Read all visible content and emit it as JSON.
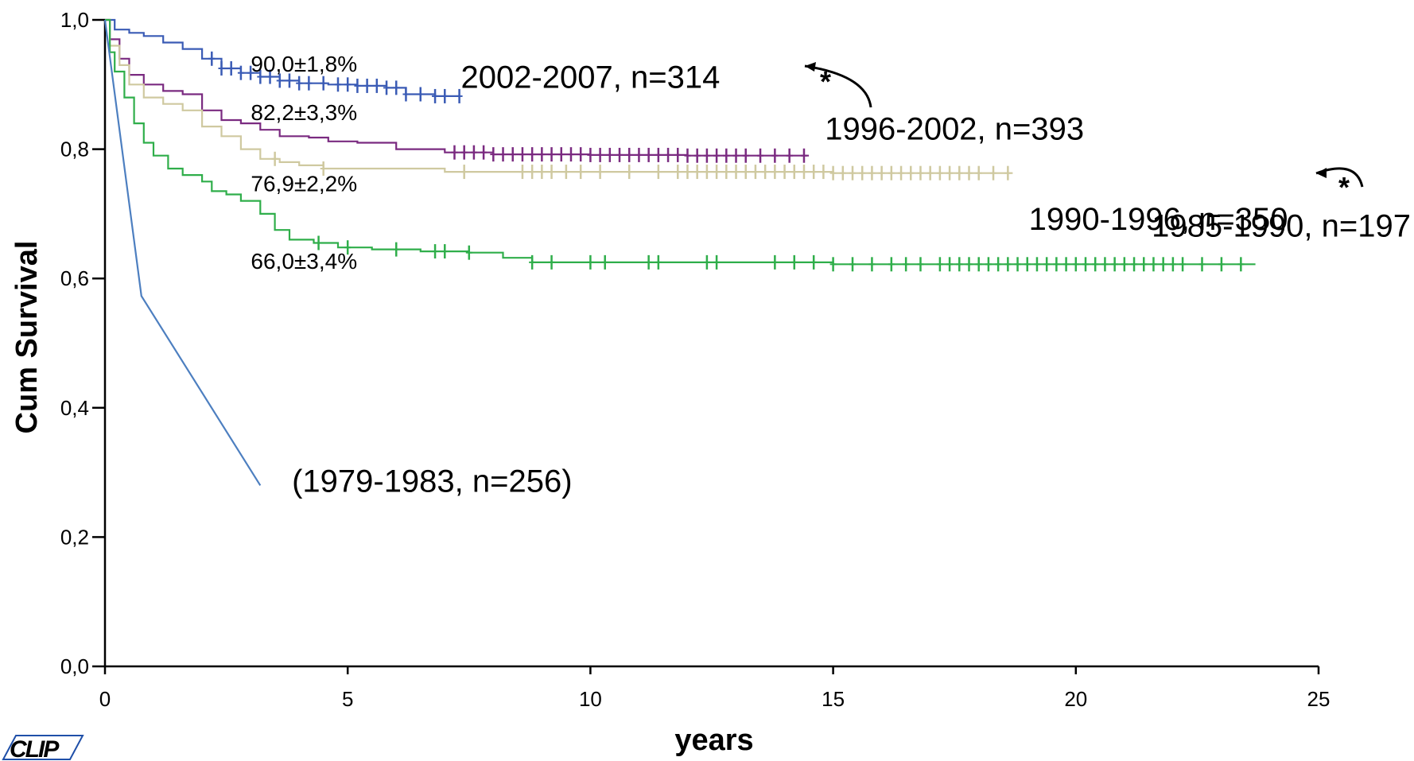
{
  "chart_data": {
    "type": "line",
    "title": "",
    "xlabel": "years",
    "ylabel": "Cum Survival",
    "xlim": [
      0,
      25
    ],
    "ylim": [
      0,
      1
    ],
    "x_ticks": [
      "0",
      "5",
      "10",
      "15",
      "20",
      "25"
    ],
    "y_ticks": [
      "0,0",
      "0,2",
      "0,4",
      "0,6",
      "0,8",
      "1,0"
    ],
    "grid": false,
    "series": [
      {
        "name": "2002-2007, n=314",
        "color": "#3a5bb5",
        "points": [
          [
            0,
            1.0
          ],
          [
            0.2,
            0.985
          ],
          [
            0.5,
            0.98
          ],
          [
            0.8,
            0.975
          ],
          [
            1.2,
            0.965
          ],
          [
            1.6,
            0.955
          ],
          [
            2.0,
            0.94
          ],
          [
            2.4,
            0.925
          ],
          [
            2.8,
            0.918
          ],
          [
            3.2,
            0.912
          ],
          [
            3.6,
            0.906
          ],
          [
            4.0,
            0.902
          ],
          [
            4.6,
            0.9
          ],
          [
            5.2,
            0.898
          ],
          [
            5.8,
            0.895
          ],
          [
            6.2,
            0.885
          ],
          [
            6.8,
            0.882
          ],
          [
            7.3,
            0.882
          ]
        ],
        "censor_x": [
          2.2,
          2.4,
          2.6,
          2.8,
          3.0,
          3.2,
          3.4,
          3.6,
          3.8,
          4.0,
          4.2,
          4.5,
          4.8,
          5.0,
          5.2,
          5.4,
          5.6,
          5.8,
          6.0,
          6.2,
          6.5,
          6.8,
          7.0,
          7.3
        ]
      },
      {
        "name": "1996-2002, n=393",
        "color": "#7a2a80",
        "points": [
          [
            0,
            1.0
          ],
          [
            0.1,
            0.97
          ],
          [
            0.3,
            0.94
          ],
          [
            0.5,
            0.915
          ],
          [
            0.8,
            0.9
          ],
          [
            1.2,
            0.89
          ],
          [
            1.6,
            0.885
          ],
          [
            2.0,
            0.86
          ],
          [
            2.4,
            0.845
          ],
          [
            2.8,
            0.84
          ],
          [
            3.2,
            0.83
          ],
          [
            3.6,
            0.82
          ],
          [
            4.2,
            0.818
          ],
          [
            4.6,
            0.812
          ],
          [
            5.2,
            0.81
          ],
          [
            6.0,
            0.8
          ],
          [
            7.0,
            0.795
          ],
          [
            8.0,
            0.792
          ],
          [
            10.0,
            0.791
          ],
          [
            12.0,
            0.79
          ],
          [
            14.5,
            0.79
          ]
        ],
        "censor_x": [
          7.2,
          7.4,
          7.6,
          7.8,
          8.0,
          8.2,
          8.4,
          8.6,
          8.8,
          9.0,
          9.2,
          9.4,
          9.6,
          9.8,
          10.0,
          10.2,
          10.4,
          10.6,
          10.8,
          11.0,
          11.2,
          11.4,
          11.6,
          11.8,
          12.0,
          12.2,
          12.4,
          12.6,
          12.8,
          13.0,
          13.2,
          13.5,
          13.8,
          14.1,
          14.4
        ]
      },
      {
        "name": "1990-1996, n=350",
        "color": "#cfc9a0",
        "points": [
          [
            0,
            1.0
          ],
          [
            0.1,
            0.96
          ],
          [
            0.3,
            0.93
          ],
          [
            0.5,
            0.9
          ],
          [
            0.8,
            0.88
          ],
          [
            1.2,
            0.87
          ],
          [
            1.6,
            0.86
          ],
          [
            2.0,
            0.835
          ],
          [
            2.4,
            0.82
          ],
          [
            2.8,
            0.8
          ],
          [
            3.2,
            0.785
          ],
          [
            3.6,
            0.78
          ],
          [
            4.0,
            0.775
          ],
          [
            4.5,
            0.77
          ],
          [
            5.5,
            0.77
          ],
          [
            7.0,
            0.765
          ],
          [
            9.0,
            0.765
          ],
          [
            12.0,
            0.765
          ],
          [
            15.0,
            0.763
          ],
          [
            18.7,
            0.763
          ]
        ],
        "censor_x": [
          3.5,
          4.5,
          7.4,
          8.6,
          8.8,
          9.0,
          9.2,
          9.5,
          9.8,
          10.2,
          10.8,
          11.4,
          11.8,
          12.0,
          12.2,
          12.4,
          12.6,
          12.8,
          13.0,
          13.2,
          13.4,
          13.6,
          13.8,
          14.0,
          14.2,
          14.4,
          14.6,
          14.8,
          15.0,
          15.2,
          15.4,
          15.6,
          15.8,
          16.0,
          16.2,
          16.4,
          16.6,
          16.8,
          17.0,
          17.2,
          17.4,
          17.6,
          17.8,
          18.0,
          18.3,
          18.6
        ]
      },
      {
        "name": "1985-1990, n=197",
        "color": "#2fae4a",
        "points": [
          [
            0,
            1.0
          ],
          [
            0.1,
            0.95
          ],
          [
            0.2,
            0.92
          ],
          [
            0.4,
            0.88
          ],
          [
            0.6,
            0.84
          ],
          [
            0.8,
            0.81
          ],
          [
            1.0,
            0.79
          ],
          [
            1.3,
            0.77
          ],
          [
            1.6,
            0.76
          ],
          [
            2.0,
            0.75
          ],
          [
            2.2,
            0.735
          ],
          [
            2.5,
            0.73
          ],
          [
            2.8,
            0.72
          ],
          [
            3.2,
            0.7
          ],
          [
            3.5,
            0.675
          ],
          [
            3.8,
            0.66
          ],
          [
            4.3,
            0.655
          ],
          [
            4.8,
            0.648
          ],
          [
            5.5,
            0.645
          ],
          [
            6.5,
            0.642
          ],
          [
            7.5,
            0.64
          ],
          [
            8.2,
            0.632
          ],
          [
            8.8,
            0.625
          ],
          [
            10.0,
            0.625
          ],
          [
            15.0,
            0.622
          ],
          [
            20.0,
            0.622
          ],
          [
            23.7,
            0.622
          ]
        ],
        "censor_x": [
          4.4,
          5.0,
          6.0,
          6.8,
          7.0,
          7.5,
          8.8,
          9.2,
          10.0,
          10.3,
          11.2,
          11.4,
          12.4,
          12.6,
          13.8,
          14.2,
          14.6,
          15.0,
          15.4,
          15.8,
          16.2,
          16.5,
          16.8,
          17.2,
          17.4,
          17.6,
          17.8,
          18.0,
          18.2,
          18.4,
          18.6,
          18.8,
          19.0,
          19.2,
          19.4,
          19.6,
          19.8,
          20.0,
          20.2,
          20.4,
          20.6,
          20.8,
          21.0,
          21.2,
          21.4,
          21.6,
          21.8,
          22.0,
          22.2,
          22.6,
          23.0,
          23.4
        ]
      },
      {
        "name": "(1979-1983, n=256)",
        "color": "#4d7fc0",
        "points": [
          [
            0,
            1.0
          ],
          [
            0.75,
            0.573
          ],
          [
            3.2,
            0.28
          ]
        ],
        "censor_x": []
      }
    ],
    "annotations": {
      "pct": [
        {
          "text": "90,0±1,8%",
          "x": 4.1,
          "y": 0.92
        },
        {
          "text": "82,2±3,3%",
          "x": 4.1,
          "y": 0.845
        },
        {
          "text": "76,9±2,2%",
          "x": 4.1,
          "y": 0.735
        },
        {
          "text": "66,0±3,4%",
          "x": 4.1,
          "y": 0.615
        }
      ],
      "series_labels": [
        {
          "text": "2002-2007, n=314",
          "x": 10.0,
          "y": 0.895
        },
        {
          "text": "1996-2002, n=393",
          "x": 17.5,
          "y": 0.815
        },
        {
          "text": "1990-1996, n=350",
          "x": 21.7,
          "y": 0.675
        },
        {
          "text": "1985-1990, n=197",
          "x": 24.5,
          "y": 0.665
        },
        {
          "text": "(1979-1983, n=256)",
          "x": 6.8,
          "y": 0.27
        }
      ],
      "significance_marks": [
        {
          "text": "*",
          "x": 14.8,
          "y": 0.905
        },
        {
          "text": "*",
          "x": 25.5,
          "y": 0.76
        }
      ]
    }
  },
  "logo": {
    "text": "CLIP",
    "colors": [
      "#d72631",
      "#1f4fa8"
    ]
  }
}
